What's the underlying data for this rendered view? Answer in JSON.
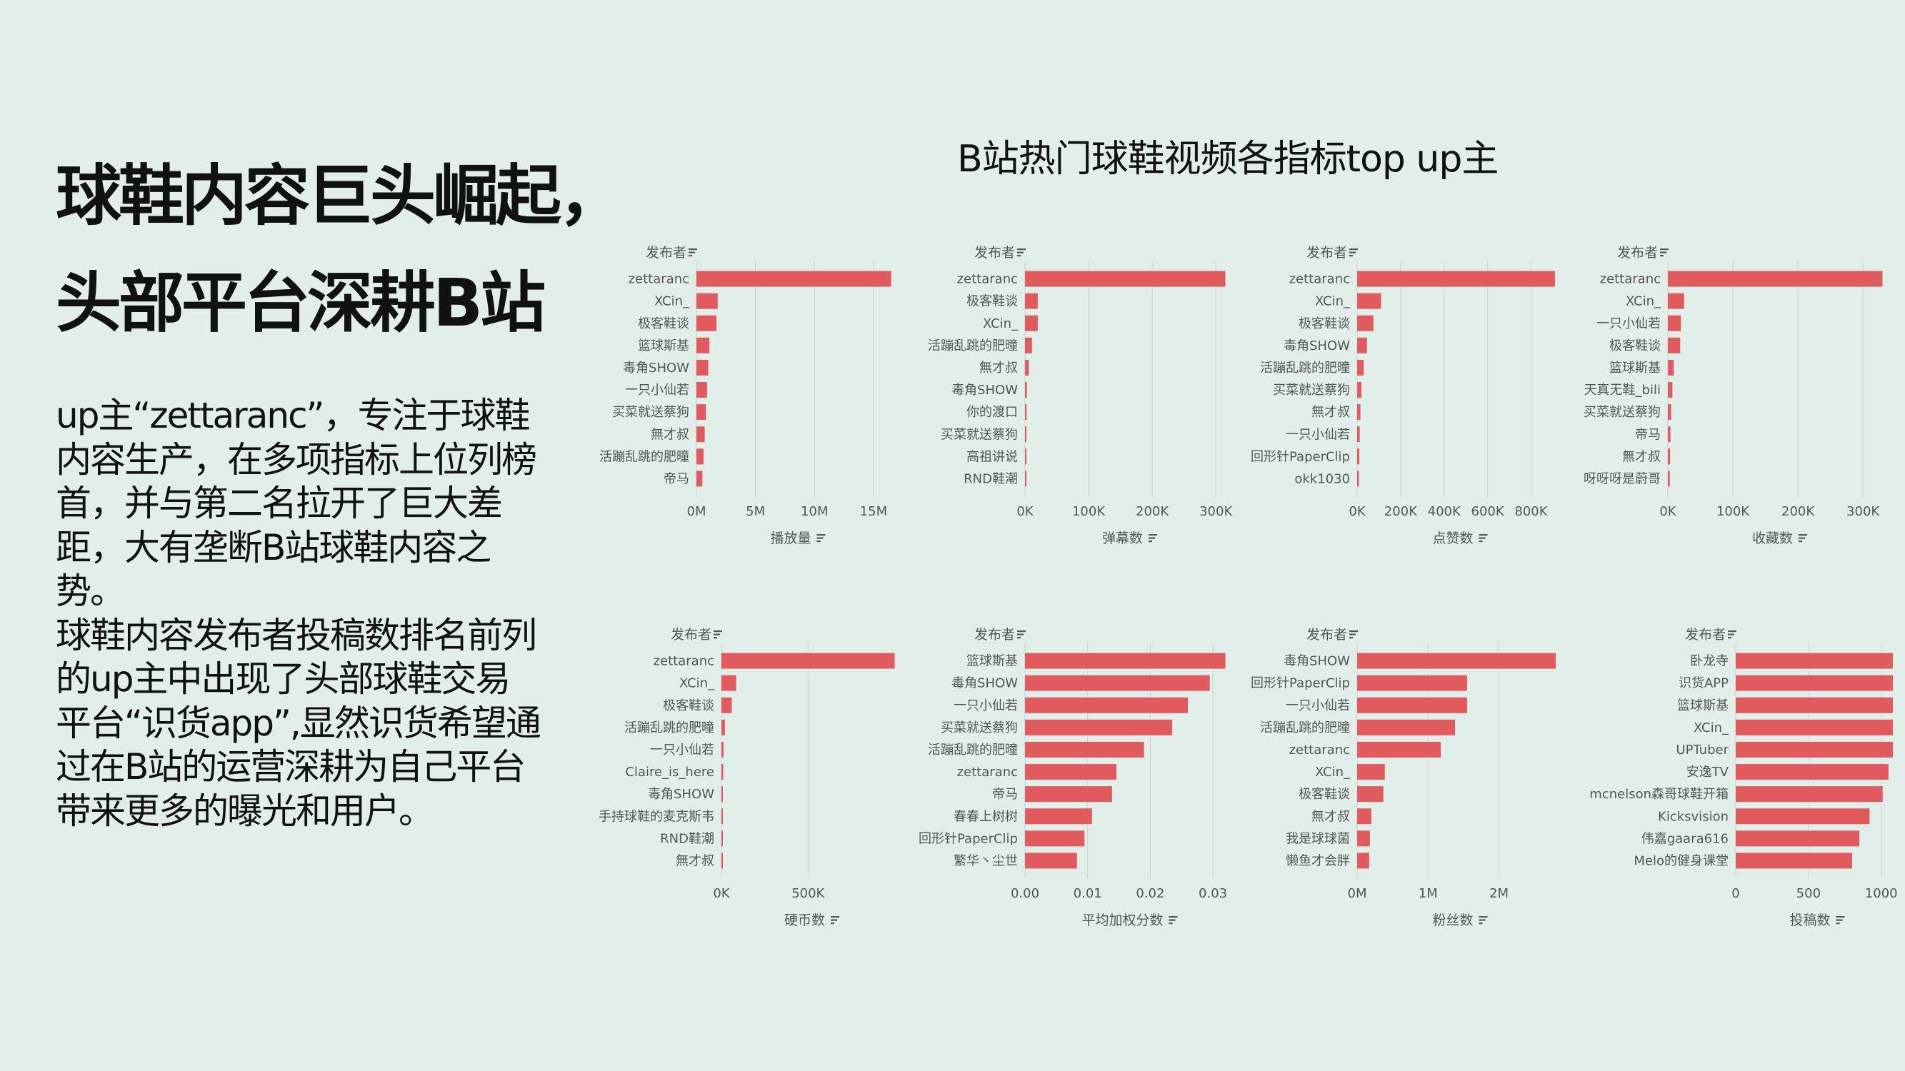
{
  "headline": [
    "球鞋内容巨头崛起，",
    "头部平台深耕B站"
  ],
  "body_paragraphs": [
    "up主“zettaranc”，专注于球鞋内容生产，在多项指标上位列榜首，并与第二名拉开了巨大差距，大有垄断B站球鞋内容之势。",
    "球鞋内容发布者投稿数排名前列的up主中出现了头部球鞋交易平台“识货app”,显然识货希望通过在B站的运营深耕为自己平台带来更多的曝光和用户。"
  ],
  "main_title": "B站热门球鞋视频各指标top up主",
  "colors": {
    "bar": "#e05a5e",
    "background": "#e1eeea",
    "grid": "#cfd8d5",
    "text": "#555555"
  },
  "icons": [
    "sort-icon"
  ],
  "chart_data": [
    {
      "type": "bar",
      "orientation": "horizontal",
      "ylabel": "发布者",
      "xlabel": "播放量",
      "categories": [
        "zettaranc",
        "XCin_",
        "极客鞋谈",
        "篮球斯基",
        "毒角SHOW",
        "一只小仙若",
        "买菜就送蔡狗",
        "無才叔",
        "活蹦乱跳的肥曈",
        "帝马"
      ],
      "values": [
        16500000,
        1800000,
        1700000,
        1100000,
        1000000,
        900000,
        800000,
        700000,
        600000,
        500000
      ],
      "xlim": [
        0,
        16700000
      ],
      "xticks": [
        0,
        5000000,
        10000000,
        15000000
      ],
      "xtick_labels": [
        "0M",
        "5M",
        "10M",
        "15M"
      ]
    },
    {
      "type": "bar",
      "orientation": "horizontal",
      "ylabel": "发布者",
      "xlabel": "弹幕数",
      "categories": [
        "zettaranc",
        "极客鞋谈",
        "XCin_",
        "活蹦乱跳的肥曈",
        "無才叔",
        "毒角SHOW",
        "你的渡口",
        "买菜就送蔡狗",
        "高祖讲说",
        "RND鞋潮"
      ],
      "values": [
        315000,
        20000,
        20000,
        11000,
        6000,
        3000,
        2500,
        2000,
        1500,
        1000
      ],
      "xlim": [
        0,
        320000
      ],
      "xticks": [
        0,
        100000,
        200000,
        300000
      ],
      "xtick_labels": [
        "0K",
        "100K",
        "200K",
        "300K"
      ]
    },
    {
      "type": "bar",
      "orientation": "horizontal",
      "ylabel": "发布者",
      "xlabel": "点赞数",
      "categories": [
        "zettaranc",
        "XCin_",
        "极客鞋谈",
        "毒角SHOW",
        "活蹦乱跳的肥曈",
        "买菜就送蔡狗",
        "無才叔",
        "一只小仙若",
        "回形针PaperClip",
        "okk1030"
      ],
      "values": [
        910000,
        110000,
        75000,
        45000,
        30000,
        20000,
        15000,
        12000,
        10000,
        8000
      ],
      "xlim": [
        0,
        920000
      ],
      "xticks": [
        0,
        200000,
        400000,
        600000,
        800000
      ],
      "xtick_labels": [
        "0K",
        "200K",
        "400K",
        "600K",
        "800K"
      ]
    },
    {
      "type": "bar",
      "orientation": "horizontal",
      "ylabel": "发布者",
      "xlabel": "收藏数",
      "categories": [
        "zettaranc",
        "XCin_",
        "一只小仙若",
        "极客鞋谈",
        "篮球斯基",
        "天真无鞋_bili",
        "买菜就送蔡狗",
        "帝马",
        "無才叔",
        "呀呀呀是蔚哥"
      ],
      "values": [
        330000,
        25000,
        20000,
        19000,
        9000,
        7000,
        5000,
        4000,
        3500,
        3000
      ],
      "xlim": [
        0,
        335000
      ],
      "xticks": [
        0,
        100000,
        200000,
        300000
      ],
      "xtick_labels": [
        "0K",
        "100K",
        "200K",
        "300K"
      ]
    },
    {
      "type": "bar",
      "orientation": "horizontal",
      "ylabel": "发布者",
      "xlabel": "硬币数",
      "categories": [
        "zettaranc",
        "XCin_",
        "极客鞋谈",
        "活蹦乱跳的肥曈",
        "一只小仙若",
        "Claire_is_here",
        "毒角SHOW",
        "手持球鞋的麦克斯韦",
        "RND鞋潮",
        "無才叔"
      ],
      "values": [
        1000000,
        85000,
        60000,
        20000,
        12000,
        10000,
        8000,
        6000,
        5000,
        4000
      ],
      "xlim": [
        0,
        1010000
      ],
      "xticks": [
        0,
        500000
      ],
      "xtick_labels": [
        "0K",
        "500K"
      ]
    },
    {
      "type": "bar",
      "orientation": "horizontal",
      "ylabel": "发布者",
      "xlabel": "平均加权分数",
      "categories": [
        "篮球斯基",
        "毒角SHOW",
        "一只小仙若",
        "买菜就送蔡狗",
        "活蹦乱跳的肥曈",
        "zettaranc",
        "帝马",
        "春春上树树",
        "回形针PaperClip",
        "繁华丶尘世"
      ],
      "values": [
        0.032,
        0.0295,
        0.026,
        0.0235,
        0.019,
        0.0146,
        0.0139,
        0.0107,
        0.0095,
        0.0083
      ],
      "xlim": [
        0,
        0.0325
      ],
      "xticks": [
        0,
        0.01,
        0.02,
        0.03
      ],
      "xtick_labels": [
        "0.00",
        "0.01",
        "0.02",
        "0.03"
      ]
    },
    {
      "type": "bar",
      "orientation": "horizontal",
      "ylabel": "发布者",
      "xlabel": "粉丝数",
      "categories": [
        "毒角SHOW",
        "回形针PaperClip",
        "一只小仙若",
        "活蹦乱跳的肥曈",
        "zettaranc",
        "XCin_",
        "极客鞋谈",
        "無才叔",
        "我是球球菌",
        "懒鱼才会胖"
      ],
      "values": [
        2800000,
        1550000,
        1550000,
        1380000,
        1180000,
        390000,
        370000,
        200000,
        180000,
        170000
      ],
      "xlim": [
        0,
        2820000
      ],
      "xticks": [
        0,
        1000000,
        2000000
      ],
      "xtick_labels": [
        "0M",
        "1M",
        "2M"
      ]
    },
    {
      "type": "bar",
      "orientation": "horizontal",
      "ylabel": "发布者",
      "xlabel": "投稿数",
      "categories": [
        "卧龙寺",
        "识货APP",
        "篮球斯基",
        "XCin_",
        "UPTuber",
        "安逸TV",
        "mcnelson森哥球鞋开箱",
        "Kicksvision",
        "伟嘉gaara616",
        "Melo的健身课堂"
      ],
      "values": [
        1080,
        1080,
        1080,
        1080,
        1080,
        1050,
        1010,
        920,
        850,
        800
      ],
      "xlim": [
        0,
        1080
      ],
      "xticks": [
        0,
        500,
        1000
      ],
      "xtick_labels": [
        "0",
        "500",
        "1000"
      ]
    }
  ]
}
